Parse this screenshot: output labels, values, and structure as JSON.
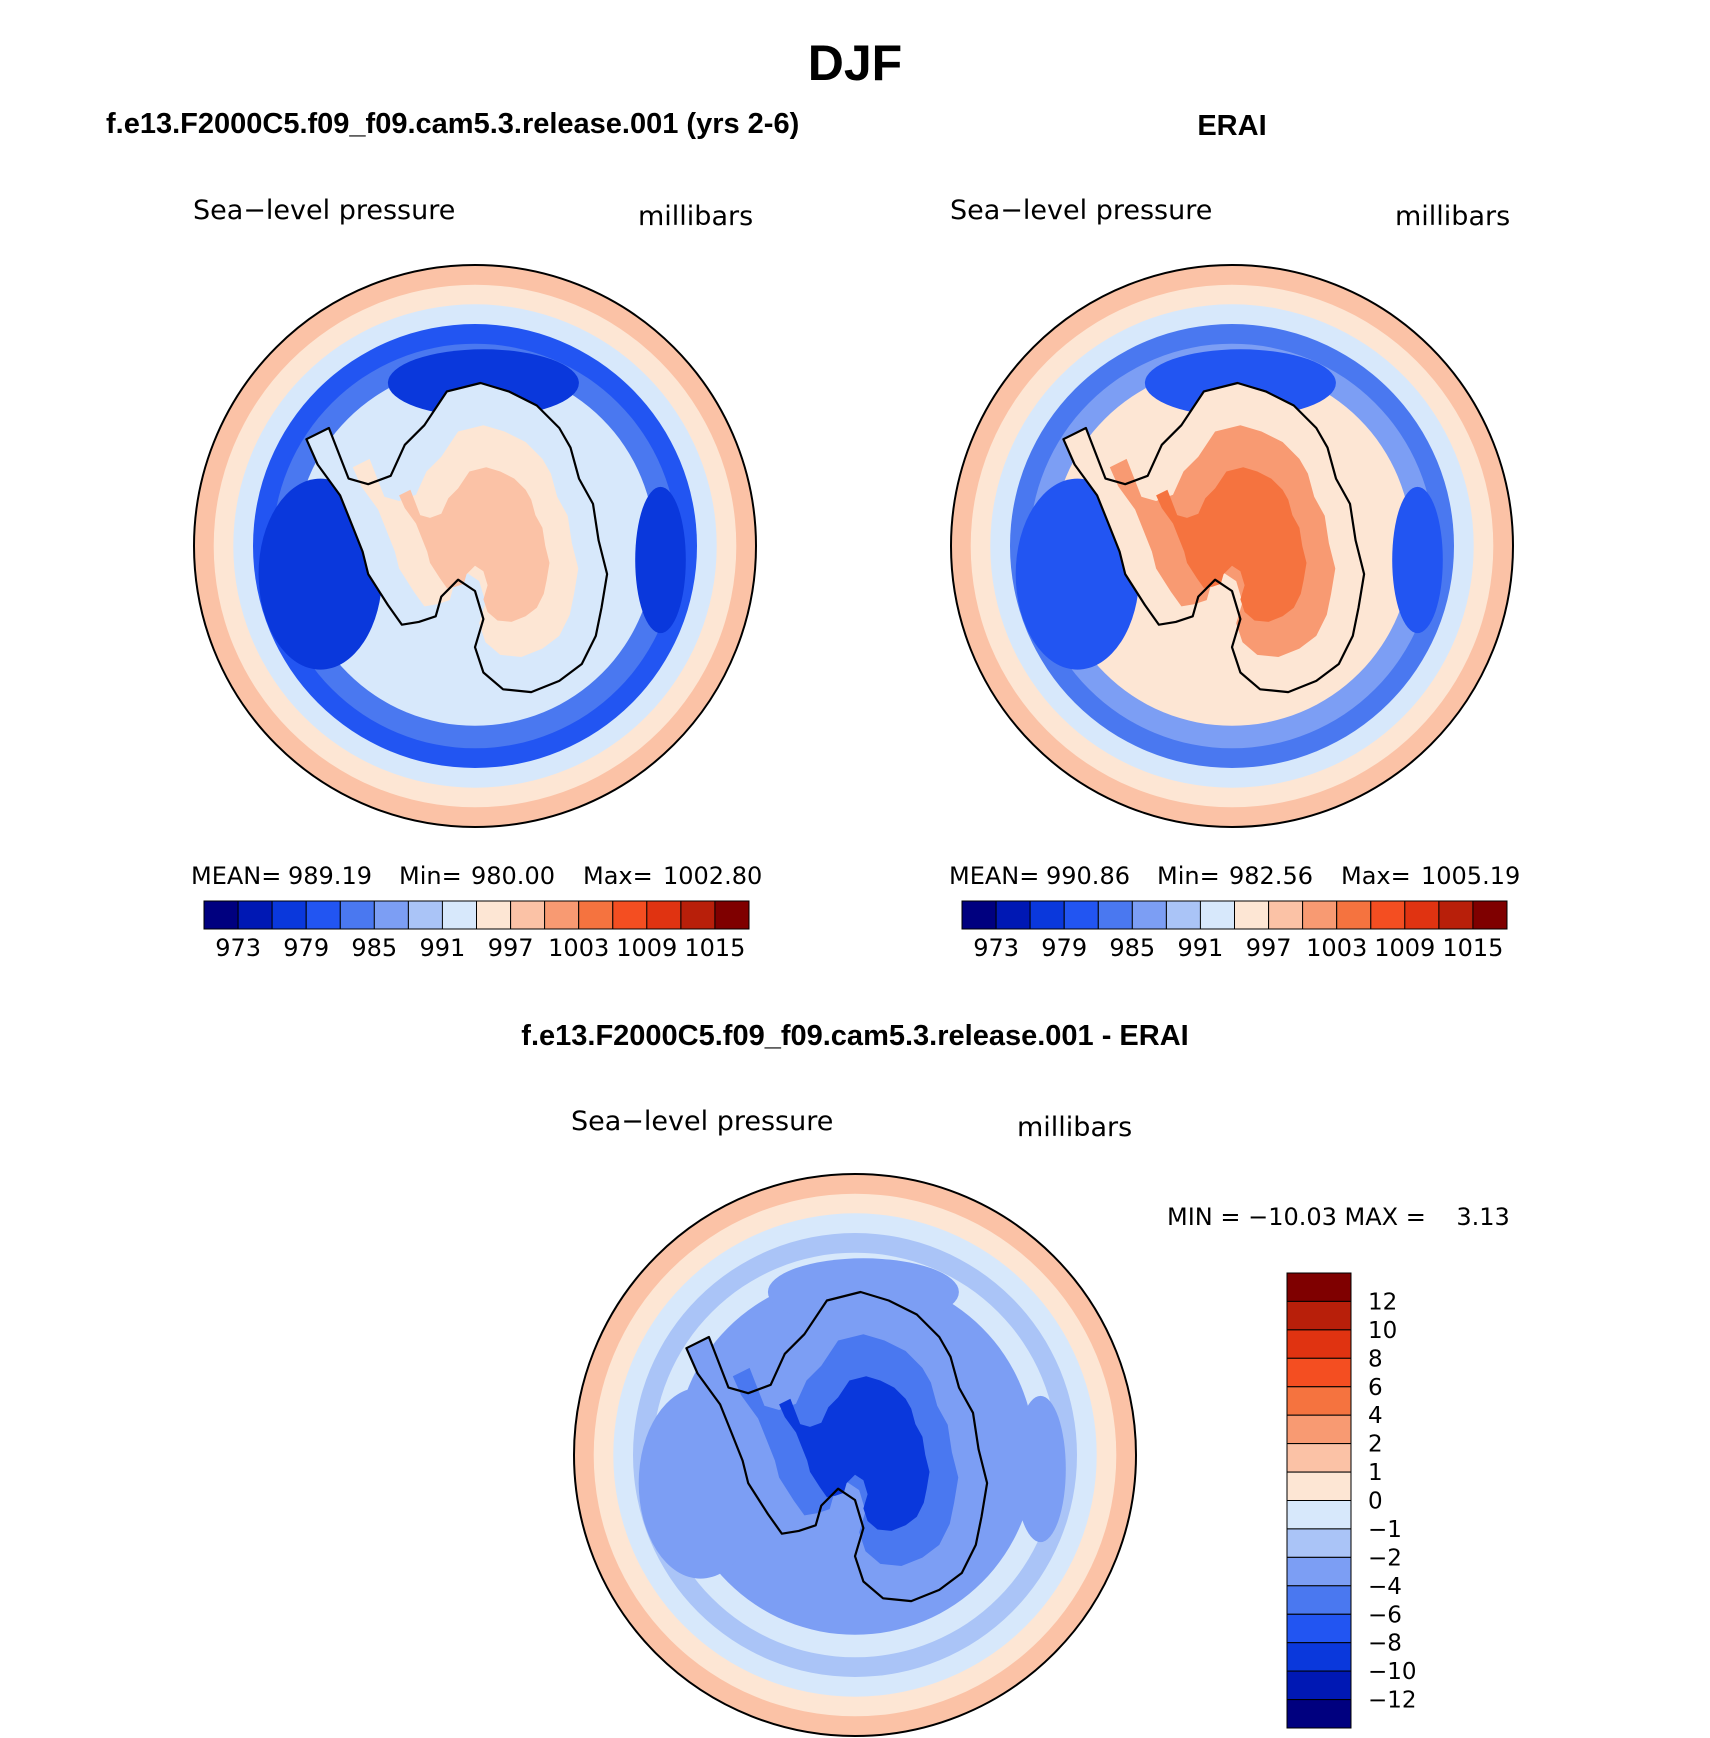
{
  "page_title": "DJF",
  "colors": {
    "slp_scale": [
      "#00007f",
      "#0018b4",
      "#0a38dc",
      "#2255f2",
      "#4a78f0",
      "#7c9ef4",
      "#aac4f7",
      "#d7e8fb",
      "#fde6d4",
      "#fbc2a6",
      "#f89a72",
      "#f5733f",
      "#f44e21",
      "#e03311",
      "#b81f0a",
      "#7f0000"
    ],
    "diff_scale": [
      "#00007f",
      "#0018b4",
      "#0a38dc",
      "#2255f2",
      "#4a78f0",
      "#7c9ef4",
      "#aac4f7",
      "#d7e8fb",
      "#fde6d4",
      "#fbc2a6",
      "#f89a72",
      "#f5733f",
      "#f44e21",
      "#e03311",
      "#b81f0a",
      "#7f0000"
    ]
  },
  "chart_data": [
    {
      "type": "heatmap",
      "projection": "south polar stereographic",
      "header": "f.e13.F2000C5.f09_f09.cam5.3.release.001 (yrs 2-6)",
      "title": "Sea−level pressure",
      "units": "millibars",
      "stats": {
        "mean_label": "MEAN=",
        "mean": "989.19",
        "min_label": "Min=",
        "min": "980.00",
        "max_label": "Max=",
        "max": "1002.80"
      },
      "colorbar": {
        "orientation": "horizontal",
        "ticks": [
          "973",
          "979",
          "985",
          "991",
          "997",
          "1003",
          "1009",
          "1015"
        ],
        "n_colors": 16
      },
      "field": {
        "center_level": 9,
        "coast_level": 7,
        "offshore_min_level": 2,
        "rim_level": 9
      }
    },
    {
      "type": "heatmap",
      "projection": "south polar stereographic",
      "header": "ERAI",
      "title": "Sea−level pressure",
      "units": "millibars",
      "stats": {
        "mean_label": "MEAN=",
        "mean": "990.86",
        "min_label": "Min=",
        "min": "982.56",
        "max_label": "Max=",
        "max": "1005.19"
      },
      "colorbar": {
        "orientation": "horizontal",
        "ticks": [
          "973",
          "979",
          "985",
          "991",
          "997",
          "1003",
          "1009",
          "1015"
        ],
        "n_colors": 16
      },
      "field": {
        "center_level": 11,
        "coast_level": 8,
        "offshore_min_level": 3,
        "rim_level": 9
      }
    },
    {
      "type": "heatmap",
      "projection": "south polar stereographic",
      "header": "f.e13.F2000C5.f09_f09.cam5.3.release.001 - ERAI",
      "title": "Sea−level pressure",
      "units": "millibars",
      "stats_text": "MIN = −10.03 MAX =    3.13",
      "colorbar": {
        "orientation": "vertical",
        "ticks": [
          "12",
          "10",
          "8",
          "6",
          "4",
          "2",
          "1",
          "0",
          "−1",
          "−2",
          "−4",
          "−6",
          "−8",
          "−10",
          "−12"
        ],
        "n_colors": 16
      },
      "field": {
        "center_level": 2,
        "coast_level": 5,
        "offshore_min_level": 5,
        "rim_level": 9
      }
    }
  ]
}
